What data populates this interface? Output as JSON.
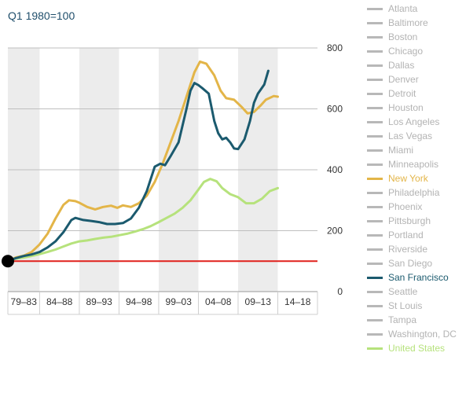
{
  "subtitle": "Q1 1980=100",
  "legend": {
    "inactive_color": "#b8b8b8",
    "items": [
      {
        "label": "Atlanta",
        "active": false
      },
      {
        "label": "Baltimore",
        "active": false
      },
      {
        "label": "Boston",
        "active": false
      },
      {
        "label": "Chicago",
        "active": false
      },
      {
        "label": "Dallas",
        "active": false
      },
      {
        "label": "Denver",
        "active": false
      },
      {
        "label": "Detroit",
        "active": false
      },
      {
        "label": "Houston",
        "active": false
      },
      {
        "label": "Los Angeles",
        "active": false
      },
      {
        "label": "Las Vegas",
        "active": false
      },
      {
        "label": "Miami",
        "active": false
      },
      {
        "label": "Minneapolis",
        "active": false
      },
      {
        "label": "New York",
        "active": true,
        "color": "#e3b548"
      },
      {
        "label": "Philadelphia",
        "active": false
      },
      {
        "label": "Phoenix",
        "active": false
      },
      {
        "label": "Pittsburgh",
        "active": false
      },
      {
        "label": "Portland",
        "active": false
      },
      {
        "label": "Riverside",
        "active": false
      },
      {
        "label": "San Diego",
        "active": false
      },
      {
        "label": "San Francisco",
        "active": true,
        "color": "#1b5a6e"
      },
      {
        "label": "Seattle",
        "active": false
      },
      {
        "label": "St Louis",
        "active": false
      },
      {
        "label": "Tampa",
        "active": false
      },
      {
        "label": "Washington, DC",
        "active": false
      },
      {
        "label": "United States",
        "active": true,
        "color": "#b6e27c"
      }
    ]
  },
  "chart_data": {
    "type": "line",
    "title": "",
    "subtitle": "Q1 1980=100",
    "xlabel": "",
    "ylabel": "",
    "xlim": [
      1980,
      2019
    ],
    "ylim": [
      0,
      800
    ],
    "yticks": [
      0,
      200,
      400,
      600,
      800
    ],
    "ytick_position": "right",
    "grid": true,
    "legend_position": "right",
    "baseline": {
      "value": 100,
      "color": "#e0201b"
    },
    "base_marker": {
      "x": 1980,
      "y": 100,
      "color": "#000000"
    },
    "period_bands": [
      {
        "label": "79–83",
        "from": 1980,
        "to": 1984,
        "shaded": true
      },
      {
        "label": "84–88",
        "from": 1984,
        "to": 1989,
        "shaded": false
      },
      {
        "label": "89–93",
        "from": 1989,
        "to": 1994,
        "shaded": true
      },
      {
        "label": "94–98",
        "from": 1994,
        "to": 1999,
        "shaded": false
      },
      {
        "label": "99–03",
        "from": 1999,
        "to": 2004,
        "shaded": true
      },
      {
        "label": "04–08",
        "from": 2004,
        "to": 2009,
        "shaded": false
      },
      {
        "label": "09–13",
        "from": 2009,
        "to": 2014,
        "shaded": true
      },
      {
        "label": "14–18",
        "from": 2014,
        "to": 2019,
        "shaded": false
      }
    ],
    "band_color": "#ececec",
    "series": [
      {
        "name": "New York",
        "color": "#e3b548",
        "points": [
          [
            1980,
            100
          ],
          [
            1981,
            112
          ],
          [
            1982,
            118
          ],
          [
            1983,
            130
          ],
          [
            1984,
            155
          ],
          [
            1985,
            190
          ],
          [
            1986,
            240
          ],
          [
            1987,
            285
          ],
          [
            1987.7,
            300
          ],
          [
            1988.5,
            297
          ],
          [
            1989,
            292
          ],
          [
            1990,
            278
          ],
          [
            1991,
            270
          ],
          [
            1992,
            278
          ],
          [
            1993,
            282
          ],
          [
            1993.8,
            275
          ],
          [
            1994.5,
            283
          ],
          [
            1995.5,
            278
          ],
          [
            1996.5,
            290
          ],
          [
            1997.5,
            315
          ],
          [
            1998.5,
            360
          ],
          [
            1999.5,
            420
          ],
          [
            2000.5,
            490
          ],
          [
            2001.5,
            560
          ],
          [
            2002.5,
            640
          ],
          [
            2003.5,
            720
          ],
          [
            2004.2,
            755
          ],
          [
            2005,
            748
          ],
          [
            2006,
            710
          ],
          [
            2006.8,
            660
          ],
          [
            2007.5,
            635
          ],
          [
            2008.5,
            630
          ],
          [
            2009.5,
            605
          ],
          [
            2010.2,
            585
          ],
          [
            2011,
            590
          ],
          [
            2011.8,
            610
          ],
          [
            2012.5,
            630
          ],
          [
            2013.5,
            642
          ],
          [
            2014,
            640
          ]
        ]
      },
      {
        "name": "San Francisco",
        "color": "#1b5a6e",
        "points": [
          [
            1980,
            100
          ],
          [
            1981,
            110
          ],
          [
            1982,
            117
          ],
          [
            1983,
            122
          ],
          [
            1984,
            130
          ],
          [
            1985,
            145
          ],
          [
            1986,
            165
          ],
          [
            1987,
            195
          ],
          [
            1988,
            235
          ],
          [
            1988.5,
            242
          ],
          [
            1989.5,
            235
          ],
          [
            1990.5,
            232
          ],
          [
            1991.5,
            228
          ],
          [
            1992.5,
            222
          ],
          [
            1993.5,
            222
          ],
          [
            1994.5,
            225
          ],
          [
            1995.5,
            240
          ],
          [
            1996.5,
            275
          ],
          [
            1997.5,
            330
          ],
          [
            1998.5,
            410
          ],
          [
            1999.2,
            420
          ],
          [
            1999.8,
            415
          ],
          [
            2000.5,
            445
          ],
          [
            2001.5,
            490
          ],
          [
            2002.5,
            600
          ],
          [
            2003,
            660
          ],
          [
            2003.5,
            685
          ],
          [
            2004,
            678
          ],
          [
            2004.5,
            668
          ],
          [
            2005.3,
            650
          ],
          [
            2006,
            560
          ],
          [
            2006.5,
            520
          ],
          [
            2007,
            500
          ],
          [
            2007.5,
            505
          ],
          [
            2008,
            490
          ],
          [
            2008.5,
            470
          ],
          [
            2009,
            468
          ],
          [
            2009.8,
            500
          ],
          [
            2010.5,
            560
          ],
          [
            2011,
            620
          ],
          [
            2011.5,
            650
          ],
          [
            2012.3,
            680
          ],
          [
            2012.8,
            725
          ]
        ]
      },
      {
        "name": "United States",
        "color": "#b6e27c",
        "points": [
          [
            1980,
            100
          ],
          [
            1981,
            108
          ],
          [
            1982,
            112
          ],
          [
            1983,
            117
          ],
          [
            1984,
            123
          ],
          [
            1985,
            130
          ],
          [
            1986,
            138
          ],
          [
            1987,
            148
          ],
          [
            1988,
            158
          ],
          [
            1989,
            165
          ],
          [
            1990,
            168
          ],
          [
            1991,
            173
          ],
          [
            1992,
            177
          ],
          [
            1993,
            180
          ],
          [
            1994,
            185
          ],
          [
            1995,
            190
          ],
          [
            1996,
            197
          ],
          [
            1997,
            205
          ],
          [
            1998,
            215
          ],
          [
            1999,
            228
          ],
          [
            2000,
            242
          ],
          [
            2001,
            256
          ],
          [
            2002,
            275
          ],
          [
            2003,
            300
          ],
          [
            2004,
            335
          ],
          [
            2004.7,
            360
          ],
          [
            2005.5,
            370
          ],
          [
            2006.3,
            362
          ],
          [
            2007,
            340
          ],
          [
            2008,
            320
          ],
          [
            2009,
            310
          ],
          [
            2010,
            290
          ],
          [
            2011,
            290
          ],
          [
            2012,
            305
          ],
          [
            2013,
            330
          ],
          [
            2014,
            340
          ]
        ]
      }
    ]
  }
}
